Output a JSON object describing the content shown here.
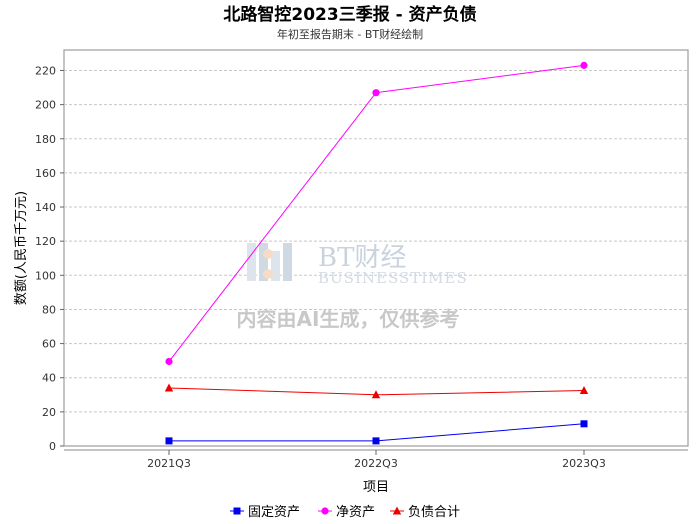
{
  "chart_data": {
    "type": "line",
    "title": "北路智控2023三季报 - 资产负债",
    "subtitle": "年初至报告期末 - BT财经绘制",
    "xlabel": "项目",
    "ylabel": "数额(人民币千万元)",
    "categories": [
      "2021Q3",
      "2022Q3",
      "2023Q3"
    ],
    "ylim": [
      0,
      232
    ],
    "yticks": [
      0,
      20,
      40,
      60,
      80,
      100,
      120,
      140,
      160,
      180,
      200,
      220
    ],
    "grid": true,
    "legend_position": "bottom",
    "series": [
      {
        "name": "固定资产",
        "values": [
          3,
          3,
          13
        ],
        "color": "#0000ee",
        "marker": "square"
      },
      {
        "name": "净资产",
        "values": [
          49.5,
          207,
          223
        ],
        "color": "#ff00ff",
        "marker": "circle"
      },
      {
        "name": "负债合计",
        "values": [
          34,
          30,
          32.5
        ],
        "color": "#ee0000",
        "marker": "triangle"
      }
    ]
  },
  "watermark": {
    "brand": "BT财经",
    "brand_en": "BUSINESSTIMES",
    "note": "内容由AI生成，仅供参考"
  }
}
